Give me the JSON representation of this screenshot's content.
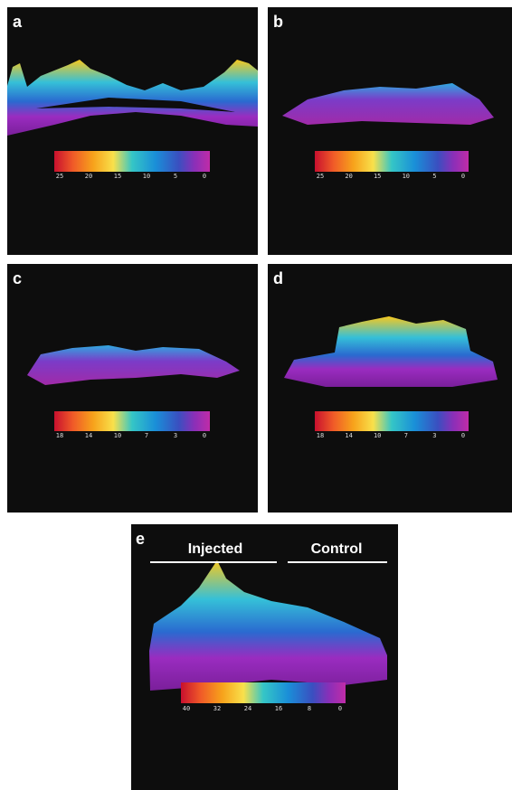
{
  "panels": [
    {
      "label": "a",
      "scale": [
        25,
        20,
        15,
        10,
        5,
        0
      ]
    },
    {
      "label": "b",
      "scale": [
        25,
        20,
        15,
        10,
        5,
        0
      ]
    },
    {
      "label": "c",
      "scale": [
        18,
        14,
        10,
        7,
        3,
        0
      ]
    },
    {
      "label": "d",
      "scale": [
        18,
        14,
        10,
        7,
        3,
        0
      ]
    },
    {
      "label": "e",
      "scale": [
        40,
        32,
        24,
        16,
        8,
        0
      ]
    }
  ],
  "group_labels": {
    "injected": "Injected",
    "control": "Control"
  }
}
